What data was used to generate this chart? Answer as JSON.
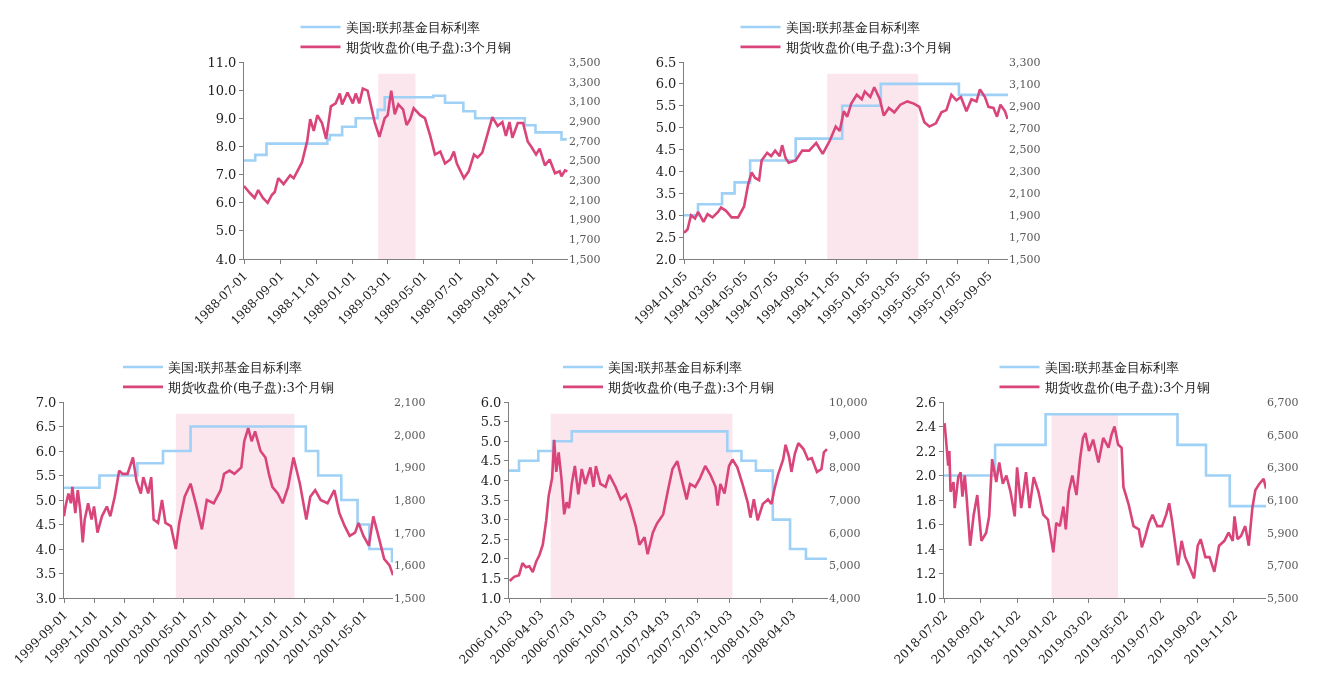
{
  "chart_data": [
    {
      "type": "line",
      "legend": "top",
      "xlim": [
        "1988-07-01",
        "1989-12-31"
      ],
      "xticks": [
        "1988-07-01",
        "1988-09-01",
        "1988-11-01",
        "1989-01-01",
        "1989-03-01",
        "1989-05-01",
        "1989-07-01",
        "1989-09-01",
        "1989-11-01"
      ],
      "ylim": [
        4,
        11
      ],
      "yticks": [
        {
          "value": 4,
          "label": "4.0"
        },
        {
          "value": 5,
          "label": "5.0"
        },
        {
          "value": 6,
          "label": "6.0"
        },
        {
          "value": 7,
          "label": "7.0"
        },
        {
          "value": 8,
          "label": "8.0"
        },
        {
          "value": 9,
          "label": "9.0"
        },
        {
          "value": 10,
          "label": "10.0"
        },
        {
          "value": 11,
          "label": "11.0"
        }
      ],
      "y2lim": [
        1500,
        3500
      ],
      "y2ticks": [
        {
          "value": 1500,
          "label": "1,500"
        },
        {
          "value": 1700,
          "label": "1,700"
        },
        {
          "value": 1900,
          "label": "1,900"
        },
        {
          "value": 2100,
          "label": "2,100"
        },
        {
          "value": 2300,
          "label": "2,300"
        },
        {
          "value": 2500,
          "label": "2,500"
        },
        {
          "value": 2700,
          "label": "2,700"
        },
        {
          "value": 2900,
          "label": "2,900"
        },
        {
          "value": 3100,
          "label": "3,100"
        },
        {
          "value": 3300,
          "label": "3,300"
        },
        {
          "value": 3500,
          "label": "3,500"
        }
      ],
      "bands": [
        {
          "axis": "x",
          "from": "1989-02-13",
          "to": "1989-04-17",
          "color": "#fbe6ee"
        }
      ],
      "series": [
        {
          "name": "美国:联邦基金目标利率",
          "type": "step",
          "color": "#9fd0f5",
          "x": [
            "1988-07-01",
            "1988-07-20",
            "1988-08-08",
            "1988-11-19",
            "1988-11-23",
            "1988-12-14",
            "1989-01-06",
            "1989-02-12",
            "1989-02-24",
            "1989-05-17",
            "1989-06-06",
            "1989-07-07",
            "1989-07-27",
            "1989-10-19",
            "1989-11-06",
            "1989-12-20",
            "1989-12-29"
          ],
          "values": [
            7.5,
            7.7,
            8.1,
            8.25,
            8.4,
            8.7,
            9.0,
            9.3,
            9.75,
            9.8,
            9.55,
            9.25,
            9.0,
            8.75,
            8.5,
            8.25,
            8.25
          ]
        },
        {
          "name": "期货收盘价(电子盘):3个月铜",
          "type": "line",
          "axis": "y2",
          "color": "#d9457a",
          "x": [
            "1988-07-01",
            "1988-07-11",
            "1988-07-19",
            "1988-07-25",
            "1988-08-02",
            "1988-08-10",
            "1988-08-17",
            "1988-08-22",
            "1988-08-28",
            "1988-09-06",
            "1988-09-17",
            "1988-09-23",
            "1988-10-07",
            "1988-10-16",
            "1988-10-21",
            "1988-10-27",
            "1988-11-02",
            "1988-11-10",
            "1988-11-17",
            "1988-11-25",
            "1988-12-03",
            "1988-12-10",
            "1988-12-14",
            "1988-12-23",
            "1989-01-01",
            "1989-01-06",
            "1989-01-12",
            "1989-01-18",
            "1989-01-26",
            "1989-02-07",
            "1989-02-15",
            "1989-02-24",
            "1989-03-01",
            "1989-03-07",
            "1989-03-13",
            "1989-03-19",
            "1989-03-27",
            "1989-04-02",
            "1989-04-08",
            "1989-04-14",
            "1989-04-25",
            "1989-05-03",
            "1989-05-12",
            "1989-05-20",
            "1989-05-29",
            "1989-06-06",
            "1989-06-15",
            "1989-06-21",
            "1989-06-26",
            "1989-07-08",
            "1989-07-16",
            "1989-07-25",
            "1989-07-31",
            "1989-08-08",
            "1989-08-17",
            "1989-08-25",
            "1989-09-03",
            "1989-09-11",
            "1989-09-17",
            "1989-09-23",
            "1989-09-28",
            "1989-10-07",
            "1989-10-16",
            "1989-10-24",
            "1989-10-30",
            "1989-11-07",
            "1989-11-13",
            "1989-11-22",
            "1989-11-30",
            "1989-12-09",
            "1989-12-17",
            "1989-12-20",
            "1989-12-26",
            "1989-12-30"
          ],
          "values": [
            2240,
            2170,
            2120,
            2200,
            2120,
            2070,
            2150,
            2180,
            2320,
            2260,
            2350,
            2320,
            2480,
            2700,
            2920,
            2800,
            2960,
            2880,
            2720,
            3050,
            3080,
            3180,
            3070,
            3190,
            3080,
            3180,
            3080,
            3230,
            3210,
            2890,
            2740,
            2930,
            2960,
            3210,
            2970,
            3070,
            3020,
            2860,
            2920,
            3030,
            2960,
            2930,
            2750,
            2560,
            2590,
            2470,
            2510,
            2590,
            2470,
            2320,
            2390,
            2560,
            2530,
            2580,
            2770,
            2940,
            2850,
            2890,
            2750,
            2890,
            2730,
            2880,
            2880,
            2690,
            2640,
            2560,
            2620,
            2450,
            2510,
            2370,
            2390,
            2340,
            2400,
            2390
          ]
        }
      ]
    },
    {
      "type": "line",
      "legend": "top",
      "xlim": [
        "1994-01-05",
        "1995-10-14"
      ],
      "xticks": [
        "1994-01-05",
        "1994-03-05",
        "1994-05-05",
        "1994-07-05",
        "1994-09-05",
        "1994-11-05",
        "1995-01-05",
        "1995-03-05",
        "1995-05-05",
        "1995-07-05",
        "1995-09-05"
      ],
      "ylim": [
        2,
        6.5
      ],
      "yticks": [
        {
          "value": 2,
          "label": "2.0"
        },
        {
          "value": 2.5,
          "label": "2.5"
        },
        {
          "value": 3,
          "label": "3.0"
        },
        {
          "value": 3.5,
          "label": "3.5"
        },
        {
          "value": 4,
          "label": "4.0"
        },
        {
          "value": 4.5,
          "label": "4.5"
        },
        {
          "value": 5,
          "label": "5.0"
        },
        {
          "value": 5.5,
          "label": "5.5"
        },
        {
          "value": 6,
          "label": "6.0"
        },
        {
          "value": 6.5,
          "label": "6.5"
        }
      ],
      "y2lim": [
        1500,
        3300
      ],
      "y2ticks": [
        {
          "value": 1500,
          "label": "1,500"
        },
        {
          "value": 1700,
          "label": "1,700"
        },
        {
          "value": 1900,
          "label": "1,900"
        },
        {
          "value": 2100,
          "label": "2,100"
        },
        {
          "value": 2300,
          "label": "2,300"
        },
        {
          "value": 2500,
          "label": "2,500"
        },
        {
          "value": 2700,
          "label": "2,700"
        },
        {
          "value": 2900,
          "label": "2,900"
        },
        {
          "value": 3100,
          "label": "3,100"
        },
        {
          "value": 3300,
          "label": "3,300"
        }
      ],
      "bands": [
        {
          "axis": "x",
          "from": "1994-10-18",
          "to": "1995-04-18",
          "color": "#fbe6ee"
        }
      ],
      "series": [
        {
          "name": "美国:联邦基金目标利率",
          "type": "step",
          "color": "#9fd0f5",
          "x": [
            "1994-01-05",
            "1994-02-02",
            "1994-03-22",
            "1994-04-16",
            "1994-05-17",
            "1994-08-16",
            "1994-11-17",
            "1995-02-02",
            "1995-07-08",
            "1995-10-14"
          ],
          "values": [
            3.0,
            3.25,
            3.5,
            3.75,
            4.25,
            4.75,
            5.5,
            6.0,
            5.75,
            5.75
          ]
        },
        {
          "name": "期货收盘价(电子盘):3个月铜",
          "type": "line",
          "axis": "y2",
          "color": "#d9457a",
          "x": [
            "1994-01-05",
            "1994-01-12",
            "1994-01-19",
            "1994-01-27",
            "1994-02-02",
            "1994-02-13",
            "1994-02-21",
            "1994-03-03",
            "1994-03-14",
            "1994-03-20",
            "1994-03-30",
            "1994-04-10",
            "1994-04-23",
            "1994-05-05",
            "1994-05-13",
            "1994-05-20",
            "1994-05-27",
            "1994-06-04",
            "1994-06-09",
            "1994-06-20",
            "1994-06-28",
            "1994-07-06",
            "1994-07-15",
            "1994-07-20",
            "1994-07-27",
            "1994-08-02",
            "1994-08-16",
            "1994-08-29",
            "1994-09-12",
            "1994-09-26",
            "1994-10-09",
            "1994-10-23",
            "1994-11-04",
            "1994-11-12",
            "1994-11-20",
            "1994-11-27",
            "1994-12-05",
            "1994-12-16",
            "1994-12-26",
            "1995-01-01",
            "1995-01-12",
            "1995-01-20",
            "1995-01-31",
            "1995-02-08",
            "1995-02-18",
            "1995-03-01",
            "1995-03-13",
            "1995-03-27",
            "1995-04-09",
            "1995-04-20",
            "1995-04-30",
            "1995-05-10",
            "1995-05-23",
            "1995-06-03",
            "1995-06-13",
            "1995-06-23",
            "1995-07-03",
            "1995-07-12",
            "1995-07-23",
            "1995-08-02",
            "1995-08-12",
            "1995-08-19",
            "1995-08-29",
            "1995-09-05",
            "1995-09-15",
            "1995-09-22",
            "1995-09-29",
            "1995-10-08",
            "1995-10-13"
          ],
          "values": [
            1740,
            1770,
            1900,
            1870,
            1930,
            1840,
            1910,
            1880,
            1930,
            1970,
            1940,
            1880,
            1880,
            1980,
            2180,
            2290,
            2240,
            2220,
            2400,
            2470,
            2440,
            2490,
            2440,
            2540,
            2420,
            2380,
            2400,
            2490,
            2490,
            2560,
            2460,
            2580,
            2710,
            2670,
            2850,
            2800,
            2920,
            3000,
            2960,
            3030,
            2980,
            3070,
            2960,
            2810,
            2880,
            2840,
            2910,
            2940,
            2920,
            2890,
            2750,
            2710,
            2740,
            2840,
            2860,
            3000,
            2950,
            2980,
            2850,
            2960,
            2940,
            3050,
            2980,
            2890,
            2880,
            2800,
            2910,
            2850,
            2780
          ]
        }
      ]
    },
    {
      "type": "line",
      "legend": "top",
      "xlim": [
        "1999-09-01",
        "2001-06-30"
      ],
      "xticks": [
        "1999-09-01",
        "1999-11-01",
        "2000-01-01",
        "2000-03-01",
        "2000-05-01",
        "2000-07-01",
        "2000-09-01",
        "2000-11-01",
        "2001-01-01",
        "2001-03-01",
        "2001-05-01"
      ],
      "ylim": [
        3,
        7
      ],
      "yticks": [
        {
          "value": 3,
          "label": "3.0"
        },
        {
          "value": 3.5,
          "label": "3.5"
        },
        {
          "value": 4,
          "label": "4.0"
        },
        {
          "value": 4.5,
          "label": "4.5"
        },
        {
          "value": 5,
          "label": "5.0"
        },
        {
          "value": 5.5,
          "label": "5.5"
        },
        {
          "value": 6,
          "label": "6.0"
        },
        {
          "value": 6.5,
          "label": "6.5"
        },
        {
          "value": 7,
          "label": "7.0"
        }
      ],
      "y2lim": [
        1500,
        2100
      ],
      "y2ticks": [
        {
          "value": 1500,
          "label": "1,500"
        },
        {
          "value": 1600,
          "label": "1,600"
        },
        {
          "value": 1700,
          "label": "1,700"
        },
        {
          "value": 1800,
          "label": "1,800"
        },
        {
          "value": 1900,
          "label": "1,900"
        },
        {
          "value": 2000,
          "label": "2,000"
        },
        {
          "value": 2100,
          "label": "2,100"
        }
      ],
      "bands": [
        {
          "axis": "x",
          "from": "2000-04-15",
          "to": "2000-12-12",
          "color": "#fbe6ee"
        }
      ],
      "series": [
        {
          "name": "美国:联邦基金目标利率",
          "type": "step",
          "color": "#9fd0f5",
          "x": [
            "1999-09-01",
            "1999-11-12",
            "2000-01-28",
            "2000-03-20",
            "2000-05-15",
            "2001-01-04",
            "2001-01-29",
            "2001-03-17",
            "2001-04-19",
            "2001-05-13",
            "2001-06-28",
            "2001-06-30"
          ],
          "values": [
            5.25,
            5.5,
            5.75,
            6.0,
            6.5,
            6.0,
            5.5,
            5.0,
            4.5,
            4.0,
            3.75,
            3.75
          ]
        },
        {
          "name": "期货收盘价(电子盘):3个月铜",
          "type": "line",
          "axis": "y2",
          "color": "#d9457a",
          "x": [
            "1999-09-01",
            "1999-09-04",
            "1999-09-10",
            "1999-09-15",
            "1999-09-18",
            "1999-09-24",
            "1999-09-29",
            "1999-10-04",
            "1999-10-09",
            "1999-10-13",
            "1999-10-20",
            "1999-10-27",
            "1999-11-01",
            "1999-11-08",
            "1999-11-17",
            "1999-11-27",
            "1999-12-04",
            "1999-12-13",
            "1999-12-22",
            "1999-12-29",
            "2000-01-08",
            "2000-01-19",
            "2000-01-26",
            "2000-02-04",
            "2000-02-09",
            "2000-02-19",
            "2000-02-25",
            "2000-03-01",
            "2000-03-10",
            "2000-03-18",
            "2000-03-25",
            "2000-04-05",
            "2000-04-15",
            "2000-04-22",
            "2000-05-03",
            "2000-05-15",
            "2000-05-27",
            "2000-06-07",
            "2000-06-17",
            "2000-07-01",
            "2000-07-15",
            "2000-07-22",
            "2000-08-02",
            "2000-08-12",
            "2000-08-26",
            "2000-09-01",
            "2000-09-09",
            "2000-09-16",
            "2000-09-23",
            "2000-10-04",
            "2000-10-14",
            "2000-10-21",
            "2000-10-28",
            "2000-11-08",
            "2000-11-18",
            "2000-11-29",
            "2000-12-10",
            "2000-12-23",
            "2001-01-05",
            "2001-01-13",
            "2001-01-23",
            "2001-02-03",
            "2001-02-17",
            "2001-03-03",
            "2001-03-13",
            "2001-03-24",
            "2001-04-03",
            "2001-04-14",
            "2001-04-21",
            "2001-05-01",
            "2001-05-12",
            "2001-05-21",
            "2001-06-02",
            "2001-06-12",
            "2001-06-23",
            "2001-06-30"
          ],
          "values": [
            1750,
            1780,
            1820,
            1790,
            1840,
            1760,
            1830,
            1770,
            1670,
            1740,
            1790,
            1740,
            1780,
            1700,
            1750,
            1780,
            1750,
            1810,
            1890,
            1880,
            1880,
            1930,
            1860,
            1820,
            1870,
            1820,
            1870,
            1740,
            1730,
            1800,
            1730,
            1720,
            1650,
            1730,
            1810,
            1850,
            1780,
            1710,
            1800,
            1790,
            1830,
            1880,
            1890,
            1880,
            1900,
            1980,
            2020,
            1980,
            2010,
            1950,
            1930,
            1880,
            1840,
            1820,
            1790,
            1840,
            1930,
            1850,
            1740,
            1810,
            1830,
            1800,
            1790,
            1830,
            1760,
            1720,
            1690,
            1700,
            1730,
            1690,
            1660,
            1750,
            1680,
            1620,
            1600,
            1570
          ]
        }
      ]
    },
    {
      "type": "line",
      "legend": "top",
      "xlim": [
        "2006-01-03",
        "2008-07-16"
      ],
      "xticks": [
        "2006-01-03",
        "2006-04-03",
        "2006-07-03",
        "2006-10-03",
        "2007-01-03",
        "2007-04-03",
        "2007-07-03",
        "2007-10-03",
        "2008-01-03",
        "2008-04-03"
      ],
      "ylim": [
        1,
        6
      ],
      "yticks": [
        {
          "value": 1,
          "label": "1.0"
        },
        {
          "value": 1.5,
          "label": "1.5"
        },
        {
          "value": 2,
          "label": "2.0"
        },
        {
          "value": 2.5,
          "label": "2.5"
        },
        {
          "value": 3,
          "label": "3.0"
        },
        {
          "value": 3.5,
          "label": "3.5"
        },
        {
          "value": 4,
          "label": "4.0"
        },
        {
          "value": 4.5,
          "label": "4.5"
        },
        {
          "value": 5,
          "label": "5.0"
        },
        {
          "value": 5.5,
          "label": "5.5"
        },
        {
          "value": 6,
          "label": "6.0"
        }
      ],
      "y2lim": [
        4000,
        10000
      ],
      "y2ticks": [
        {
          "value": 4000,
          "label": "4,000"
        },
        {
          "value": 5000,
          "label": "5,000"
        },
        {
          "value": 6000,
          "label": "6,000"
        },
        {
          "value": 7000,
          "label": "7,000"
        },
        {
          "value": 8000,
          "label": "8,000"
        },
        {
          "value": 9000,
          "label": "9,000"
        },
        {
          "value": 10000,
          "label": "10,000"
        }
      ],
      "bands": [
        {
          "axis": "x",
          "from": "2006-05-04",
          "to": "2007-10-13",
          "color": "#fbe6ee"
        }
      ],
      "series": [
        {
          "name": "美国:联邦基金目标利率",
          "type": "step",
          "color": "#9fd0f5",
          "x": [
            "2006-01-03",
            "2006-02-01",
            "2006-03-29",
            "2006-05-11",
            "2006-07-04",
            "2007-09-28",
            "2007-11-08",
            "2007-12-20",
            "2008-02-07",
            "2008-03-28",
            "2008-05-13",
            "2008-07-13"
          ],
          "values": [
            4.25,
            4.5,
            4.75,
            5.0,
            5.25,
            4.75,
            4.5,
            4.25,
            3.0,
            2.25,
            2.0,
            2.0
          ]
        },
        {
          "name": "期货收盘价(电子盘):3个月铜",
          "type": "line",
          "axis": "y2",
          "color": "#d9457a",
          "x": [
            "2006-01-05",
            "2006-01-18",
            "2006-02-01",
            "2006-02-11",
            "2006-02-21",
            "2006-03-03",
            "2006-03-13",
            "2006-03-23",
            "2006-04-01",
            "2006-04-11",
            "2006-04-21",
            "2006-04-28",
            "2006-05-08",
            "2006-05-14",
            "2006-05-20",
            "2006-05-27",
            "2006-06-04",
            "2006-06-12",
            "2006-06-19",
            "2006-06-26",
            "2006-07-04",
            "2006-07-13",
            "2006-07-23",
            "2006-08-02",
            "2006-08-12",
            "2006-08-27",
            "2006-09-05",
            "2006-09-12",
            "2006-09-25",
            "2006-10-10",
            "2006-10-21",
            "2006-11-08",
            "2006-11-23",
            "2006-12-08",
            "2006-12-22",
            "2007-01-06",
            "2007-01-16",
            "2007-01-31",
            "2007-02-09",
            "2007-02-24",
            "2007-03-08",
            "2007-03-26",
            "2007-04-09",
            "2007-04-22",
            "2007-05-06",
            "2007-05-18",
            "2007-06-02",
            "2007-06-12",
            "2007-06-27",
            "2007-07-11",
            "2007-07-26",
            "2007-08-10",
            "2007-08-25",
            "2007-08-31",
            "2007-09-08",
            "2007-09-20",
            "2007-10-03",
            "2007-10-13",
            "2007-10-27",
            "2007-11-11",
            "2007-11-26",
            "2007-12-04",
            "2007-12-14",
            "2007-12-25",
            "2008-01-09",
            "2008-01-24",
            "2008-02-03",
            "2008-02-12",
            "2008-02-22",
            "2008-03-08",
            "2008-03-15",
            "2008-03-25",
            "2008-04-01",
            "2008-04-11",
            "2008-04-21",
            "2008-05-06",
            "2008-05-19",
            "2008-05-30",
            "2008-06-14",
            "2008-06-27",
            "2008-07-04",
            "2008-07-13"
          ],
          "values": [
            4520,
            4650,
            4700,
            5070,
            4940,
            4970,
            4790,
            5120,
            5310,
            5630,
            6380,
            7120,
            7670,
            8840,
            7860,
            8460,
            7670,
            6560,
            6930,
            6750,
            7490,
            8040,
            7170,
            7950,
            7490,
            8000,
            7400,
            8040,
            7490,
            7400,
            7770,
            7400,
            7020,
            7170,
            6750,
            6180,
            5630,
            5860,
            5340,
            6000,
            6280,
            6560,
            7300,
            7950,
            8190,
            7670,
            7020,
            7490,
            7400,
            7670,
            8040,
            7770,
            7400,
            6830,
            7490,
            7200,
            8040,
            8240,
            8000,
            7490,
            6930,
            6460,
            7020,
            6380,
            6880,
            7020,
            6880,
            7350,
            7770,
            8240,
            8690,
            8320,
            7860,
            8420,
            8740,
            8560,
            8240,
            8280,
            7860,
            7950,
            8460,
            8560
          ]
        }
      ]
    },
    {
      "type": "line",
      "legend": "top",
      "xlim": [
        "2018-07-02",
        "2019-12-26"
      ],
      "xticks": [
        "2018-07-02",
        "2018-09-02",
        "2018-11-02",
        "2019-01-02",
        "2019-03-02",
        "2019-05-02",
        "2019-07-02",
        "2019-09-02",
        "2019-11-02"
      ],
      "ylim": [
        1,
        2.6
      ],
      "yticks": [
        {
          "value": 1,
          "label": "1.0"
        },
        {
          "value": 1.2,
          "label": "1.2"
        },
        {
          "value": 1.4,
          "label": "1.4"
        },
        {
          "value": 1.6,
          "label": "1.6"
        },
        {
          "value": 1.8,
          "label": "1.8"
        },
        {
          "value": 2,
          "label": "2.0"
        },
        {
          "value": 2.2,
          "label": "2.2"
        },
        {
          "value": 2.4,
          "label": "2.4"
        },
        {
          "value": 2.6,
          "label": "2.6"
        }
      ],
      "y2lim": [
        5500,
        6700
      ],
      "y2ticks": [
        {
          "value": 5500,
          "label": "5,500"
        },
        {
          "value": 5700,
          "label": "5,700"
        },
        {
          "value": 5900,
          "label": "5,900"
        },
        {
          "value": 6100,
          "label": "6,100"
        },
        {
          "value": 6300,
          "label": "6,300"
        },
        {
          "value": 6500,
          "label": "6,500"
        },
        {
          "value": 6700,
          "label": "6,700"
        }
      ],
      "bands": [
        {
          "axis": "x",
          "from": "2018-12-30",
          "to": "2019-04-21",
          "color": "#fbe6ee"
        }
      ],
      "series": [
        {
          "name": "美国:联邦基金目标利率",
          "type": "step",
          "color": "#9fd0f5",
          "x": [
            "2018-07-02",
            "2018-09-26",
            "2018-12-20",
            "2019-07-30",
            "2019-09-16",
            "2019-10-26",
            "2019-12-26"
          ],
          "values": [
            2.0,
            2.25,
            2.5,
            2.25,
            2.0,
            1.75,
            1.75
          ]
        },
        {
          "name": "期货收盘价(电子盘):3个月铜",
          "type": "line",
          "axis": "y2",
          "color": "#d9457a",
          "x": [
            "2018-07-03",
            "2018-07-07",
            "2018-07-09",
            "2018-07-11",
            "2018-07-13",
            "2018-07-18",
            "2018-07-20",
            "2018-07-26",
            "2018-07-30",
            "2018-08-02",
            "2018-08-06",
            "2018-08-09",
            "2018-08-15",
            "2018-08-21",
            "2018-08-27",
            "2018-09-03",
            "2018-09-11",
            "2018-09-16",
            "2018-09-21",
            "2018-09-28",
            "2018-10-03",
            "2018-10-09",
            "2018-10-15",
            "2018-10-22",
            "2018-10-29",
            "2018-11-02",
            "2018-11-09",
            "2018-11-17",
            "2018-11-23",
            "2018-11-30",
            "2018-12-08",
            "2018-12-16",
            "2018-12-24",
            "2019-01-02",
            "2019-01-07",
            "2019-01-13",
            "2019-01-19",
            "2019-01-23",
            "2019-01-28",
            "2019-02-03",
            "2019-02-10",
            "2019-02-16",
            "2019-02-21",
            "2019-02-25",
            "2019-03-03",
            "2019-03-10",
            "2019-03-19",
            "2019-03-27",
            "2019-04-05",
            "2019-04-10",
            "2019-04-15",
            "2019-04-21",
            "2019-04-27",
            "2019-04-30",
            "2019-05-09",
            "2019-05-17",
            "2019-05-26",
            "2019-05-31",
            "2019-06-06",
            "2019-06-12",
            "2019-06-18",
            "2019-06-26",
            "2019-07-04",
            "2019-07-11",
            "2019-07-16",
            "2019-07-21",
            "2019-07-31",
            "2019-08-06",
            "2019-08-12",
            "2019-08-18",
            "2019-08-27",
            "2019-09-02",
            "2019-09-07",
            "2019-09-15",
            "2019-09-22",
            "2019-09-30",
            "2019-10-08",
            "2019-10-17",
            "2019-10-24",
            "2019-10-31",
            "2019-11-03",
            "2019-11-08",
            "2019-11-14",
            "2019-11-21",
            "2019-11-27",
            "2019-12-03",
            "2019-12-08",
            "2019-12-15",
            "2019-12-22",
            "2019-12-26"
          ],
          "values": [
            6570,
            6400,
            6310,
            6400,
            6150,
            6210,
            6050,
            6240,
            6270,
            6120,
            6250,
            6120,
            5820,
            6010,
            6130,
            5850,
            5900,
            6000,
            6350,
            6210,
            6330,
            6200,
            6250,
            6150,
            6000,
            6300,
            6050,
            6270,
            6050,
            6240,
            6150,
            6010,
            5980,
            5780,
            5960,
            5940,
            6060,
            5920,
            6150,
            6250,
            6130,
            6350,
            6480,
            6510,
            6400,
            6470,
            6330,
            6480,
            6420,
            6500,
            6550,
            6440,
            6420,
            6180,
            6070,
            5940,
            5920,
            5810,
            5880,
            5960,
            6010,
            5940,
            5940,
            6010,
            6080,
            5970,
            5700,
            5850,
            5750,
            5700,
            5620,
            5820,
            5860,
            5750,
            5750,
            5660,
            5820,
            5850,
            5900,
            5850,
            6000,
            5860,
            5880,
            5940,
            5820,
            6050,
            6160,
            6200,
            6230,
            6170
          ]
        }
      ]
    }
  ]
}
